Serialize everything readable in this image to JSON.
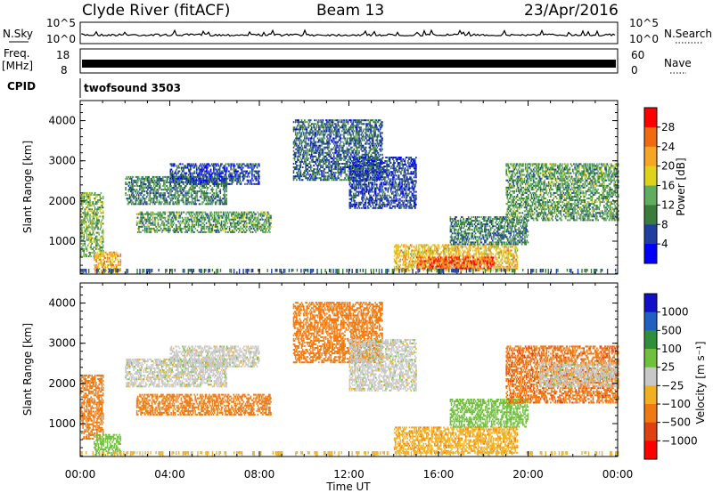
{
  "header": {
    "station": "Clyde River (fitACF)",
    "beam": "Beam 13",
    "date": "23/Apr/2016"
  },
  "panels": {
    "nsky_label": "N.Sky",
    "nsearch_label": "N.Search",
    "nsky_ticks": [
      "10^5",
      "10^0"
    ],
    "nsearch_ticks": [
      "10^5",
      "10^0"
    ],
    "freq_label_1": "Freq.",
    "freq_label_2": "[MHz]",
    "freq_ticks": [
      "18",
      "8"
    ],
    "nave_label": "Nave",
    "nave_ticks": [
      "60",
      "0"
    ],
    "cpid_label": "CPID",
    "cpid_value": "twofsound 3503"
  },
  "colors": {
    "power_scale": [
      "#0000ff",
      "#1f3fa0",
      "#3a7d3a",
      "#5fae5f",
      "#e0d21a",
      "#f5a623",
      "#f06a10",
      "#ff0000"
    ],
    "velocity_scale": [
      "#1010c8",
      "#2060c0",
      "#2f8f3a",
      "#6fc03a",
      "#c8c8c8",
      "#f0b020",
      "#f07a10",
      "#e04010",
      "#ff0000"
    ]
  },
  "chart_data": [
    {
      "type": "heatmap",
      "title": "Power",
      "ylabel": "Slant Range [km]",
      "xlabel": "",
      "ylim": [
        180,
        4500
      ],
      "xlim": [
        0,
        24
      ],
      "yticks": [
        "1000",
        "2000",
        "3000",
        "4000"
      ],
      "colorbar_label": "Power [dB]",
      "colorbar_ticks": [
        "4",
        "8",
        "12",
        "16",
        "20",
        "24",
        "28"
      ],
      "colorbar_range": [
        0,
        32
      ],
      "regions": [
        {
          "t0": 0.0,
          "t1": 1.0,
          "r0": 600,
          "r1": 2200,
          "value": 14
        },
        {
          "t0": 0.6,
          "t1": 1.8,
          "r0": 200,
          "r1": 700,
          "value": 22
        },
        {
          "t0": 2.0,
          "t1": 6.5,
          "r0": 1900,
          "r1": 2600,
          "value": 10
        },
        {
          "t0": 2.5,
          "t1": 8.5,
          "r0": 1200,
          "r1": 1700,
          "value": 12
        },
        {
          "t0": 4.0,
          "t1": 8.0,
          "r0": 2400,
          "r1": 2900,
          "value": 6
        },
        {
          "t0": 9.5,
          "t1": 13.5,
          "r0": 2500,
          "r1": 4000,
          "value": 8
        },
        {
          "t0": 12.0,
          "t1": 15.0,
          "r0": 1800,
          "r1": 3100,
          "value": 6
        },
        {
          "t0": 14.0,
          "t1": 19.5,
          "r0": 250,
          "r1": 900,
          "value": 20
        },
        {
          "t0": 15.0,
          "t1": 18.5,
          "r0": 300,
          "r1": 600,
          "value": 27
        },
        {
          "t0": 16.5,
          "t1": 20.0,
          "r0": 900,
          "r1": 1600,
          "value": 10
        },
        {
          "t0": 19.0,
          "t1": 24.0,
          "r0": 1500,
          "r1": 2900,
          "value": 12
        }
      ]
    },
    {
      "type": "heatmap",
      "title": "Velocity",
      "ylabel": "Slant Range [km]",
      "xlabel": "Time UT",
      "ylim": [
        180,
        4500
      ],
      "xlim": [
        0,
        24
      ],
      "yticks": [
        "1000",
        "2000",
        "3000",
        "4000"
      ],
      "xticks": [
        "00:00",
        "04:00",
        "08:00",
        "12:00",
        "16:00",
        "20:00",
        "00:00"
      ],
      "colorbar_label": "Velocity [m s⁻¹]",
      "colorbar_ticks": [
        "1000",
        "500",
        "100",
        "25",
        "−25",
        "−100",
        "−500",
        "−1000"
      ],
      "regions": [
        {
          "t0": 0.0,
          "t1": 1.0,
          "r0": 600,
          "r1": 2200,
          "value": -300
        },
        {
          "t0": 0.6,
          "t1": 1.8,
          "r0": 200,
          "r1": 700,
          "value": 50
        },
        {
          "t0": 2.0,
          "t1": 6.5,
          "r0": 1900,
          "r1": 2600,
          "value": 0
        },
        {
          "t0": 2.5,
          "t1": 8.5,
          "r0": 1200,
          "r1": 1700,
          "value": -150
        },
        {
          "t0": 4.0,
          "t1": 8.0,
          "r0": 2400,
          "r1": 2900,
          "value": 0
        },
        {
          "t0": 9.5,
          "t1": 13.5,
          "r0": 2500,
          "r1": 4000,
          "value": -200
        },
        {
          "t0": 12.0,
          "t1": 15.0,
          "r0": 1800,
          "r1": 3100,
          "value": 0
        },
        {
          "t0": 14.0,
          "t1": 19.5,
          "r0": 250,
          "r1": 900,
          "value": -80
        },
        {
          "t0": 16.5,
          "t1": 20.0,
          "r0": 900,
          "r1": 1600,
          "value": 60
        },
        {
          "t0": 19.0,
          "t1": 24.0,
          "r0": 1500,
          "r1": 2900,
          "value": -400
        },
        {
          "t0": 20.5,
          "t1": 24.0,
          "r0": 1900,
          "r1": 2500,
          "value": 0
        }
      ]
    }
  ]
}
